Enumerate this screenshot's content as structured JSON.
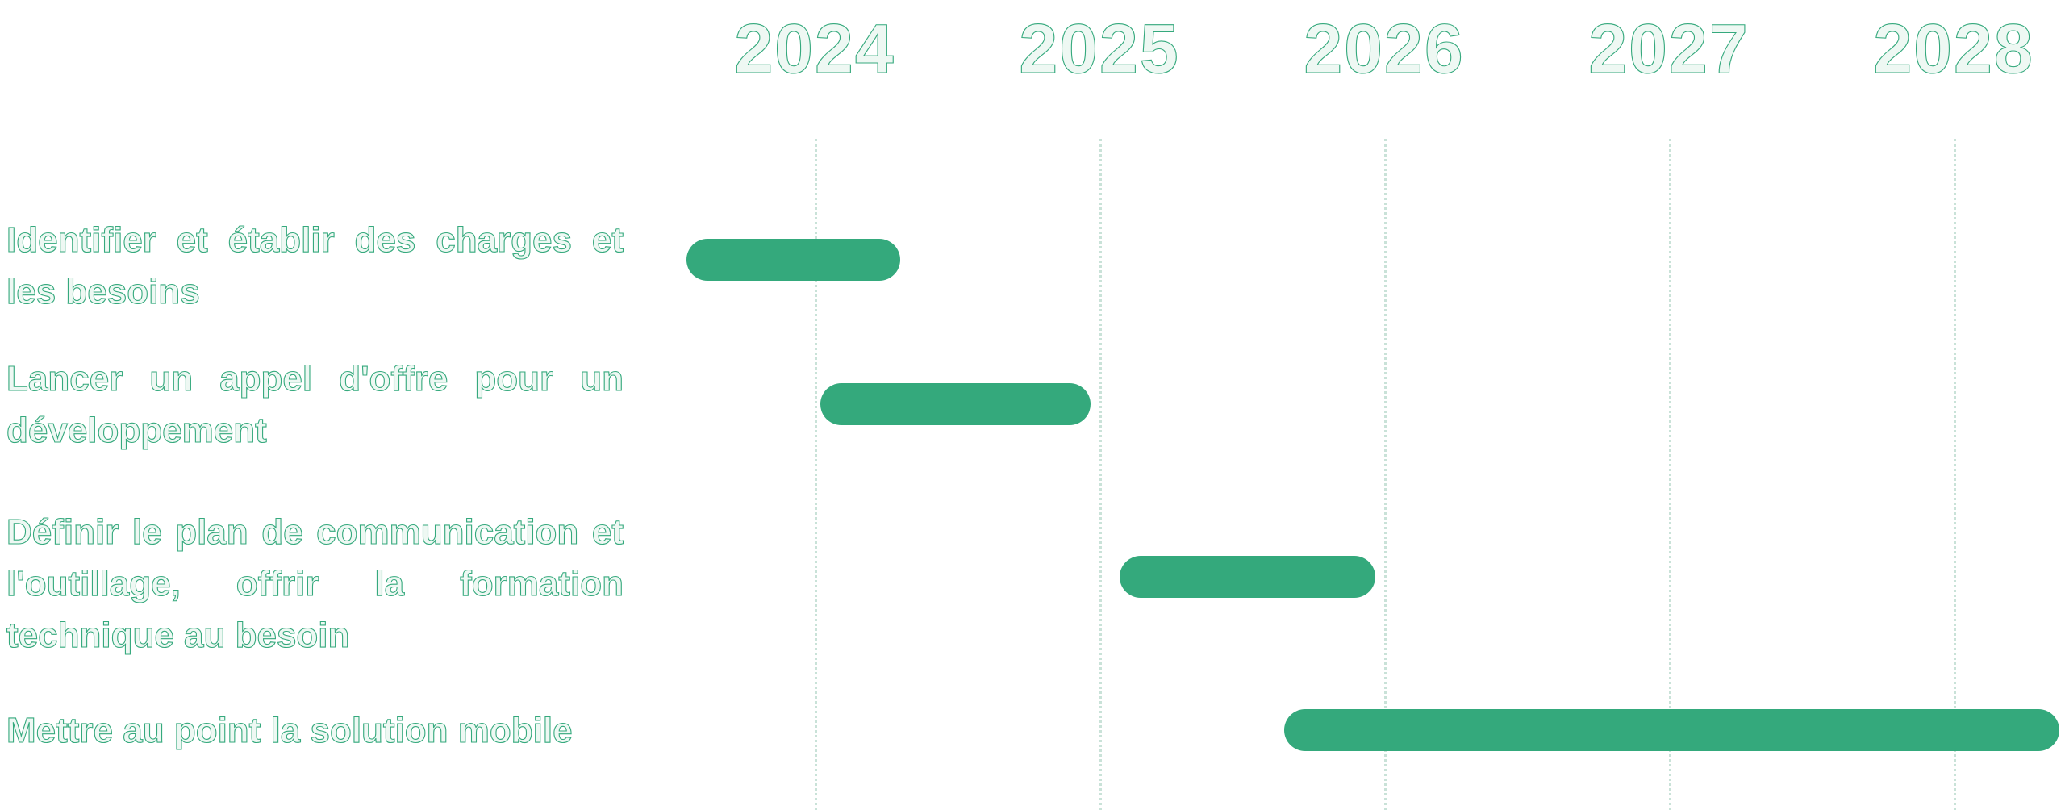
{
  "chart_data": {
    "type": "bar",
    "variant": "gantt",
    "title": "",
    "xlabel": "",
    "ylabel": "",
    "x_axis": {
      "tick_labels": [
        "2024",
        "2025",
        "2026",
        "2027",
        "2028"
      ],
      "tick_values": [
        2024,
        2025,
        2026,
        2027,
        2028
      ],
      "gridlines": "vertical-dotted"
    },
    "legend": "none",
    "tasks": [
      {
        "label": "Identifier et établir des charges et les besoins",
        "start": 2023.55,
        "end": 2024.3
      },
      {
        "label": "Lancer un appel d'offre pour un développement",
        "start": 2024.02,
        "end": 2024.97
      },
      {
        "label": "Définir le plan de communication et l'outillage, offrir la formation technique au besoin",
        "start": 2025.07,
        "end": 2025.97
      },
      {
        "label": "Mettre au point la solution mobile",
        "start": 2025.65,
        "end": 2028.37
      }
    ]
  },
  "colors": {
    "bar": "#34a97c",
    "gridline": "#9dccb9",
    "text_outline": "#35a97d",
    "background": "#ffffff"
  }
}
